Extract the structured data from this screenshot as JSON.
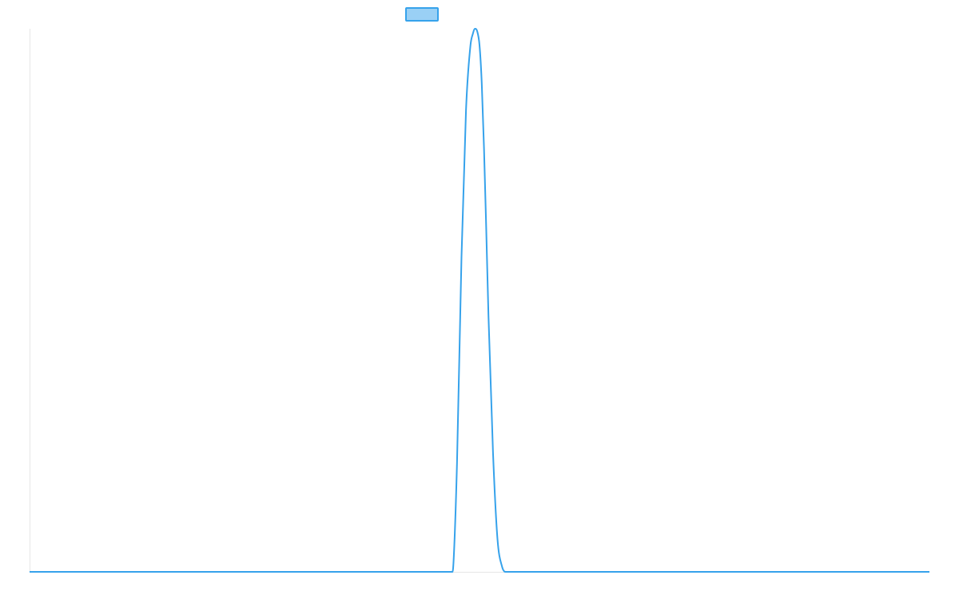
{
  "chart_data": {
    "type": "line",
    "title": "",
    "xlabel": "",
    "ylabel": "",
    "grid": false,
    "legend": {
      "placement": "top-center",
      "label": "",
      "swatch_fill": "#9ad0f5",
      "swatch_stroke": "#36a2eb"
    },
    "colors": {
      "line": "#36a2eb",
      "axis": "#e6e6e6"
    },
    "xlim": [
      0,
      1
    ],
    "ylim": [
      0,
      1
    ],
    "series": [
      {
        "x": [
          0.0,
          0.47,
          0.4712,
          0.475,
          0.48,
          0.485,
          0.49,
          0.4925,
          0.495,
          0.4975,
          0.5,
          0.5025,
          0.505,
          0.5075,
          0.51,
          0.515,
          0.52,
          0.525,
          0.5288,
          0.53,
          1.0
        ],
        "y": [
          0.0,
          0.0,
          0.02,
          0.2,
          0.58,
          0.85,
          0.97,
          0.99,
          1.0,
          0.995,
          0.97,
          0.9,
          0.78,
          0.63,
          0.47,
          0.22,
          0.06,
          0.01,
          0.0,
          0.0,
          0.0
        ]
      }
    ]
  }
}
